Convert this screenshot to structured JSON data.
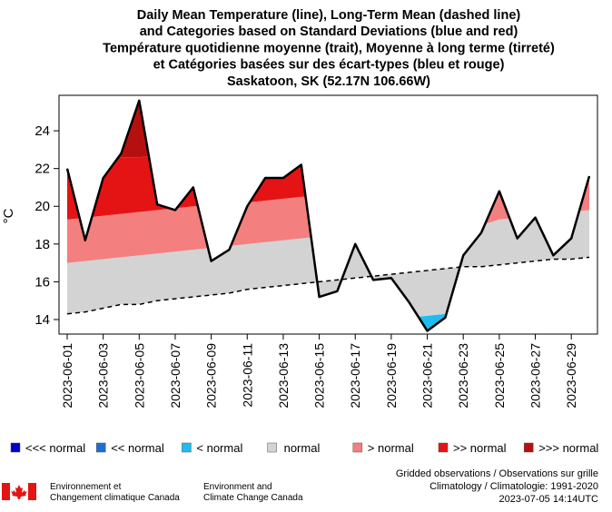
{
  "chart_data": {
    "type": "line",
    "title": [
      "Daily Mean Temperature (line), Long-Term Mean (dashed line)",
      "and Categories based on Standard Deviations (blue and red)",
      "Température quotidienne moyenne (trait), Moyenne à long terme (tirreté)",
      "et Catégories basées sur des écart-types (bleu et rouge)",
      "Saskatoon, SK (52.17N 106.66W)"
    ],
    "y_label": "°C",
    "x": [
      "2023-06-01",
      null,
      "2023-06-03",
      null,
      "2023-06-05",
      null,
      "2023-06-07",
      null,
      "2023-06-09",
      null,
      "2023-06-11",
      null,
      "2023-06-13",
      null,
      "2023-06-15",
      null,
      "2023-06-17",
      null,
      "2023-06-19",
      null,
      "2023-06-21",
      null,
      "2023-06-23",
      null,
      "2023-06-25",
      null,
      "2023-06-27",
      null,
      "2023-06-29",
      null
    ],
    "temperature": {
      "color": "#000000",
      "values": [
        22.0,
        18.2,
        21.5,
        22.8,
        25.6,
        20.1,
        19.8,
        21.0,
        17.1,
        17.7,
        20.0,
        21.5,
        21.5,
        22.2,
        15.2,
        15.5,
        18.0,
        16.1,
        16.2,
        14.9,
        13.4,
        14.1,
        17.4,
        18.6,
        20.8,
        18.3,
        19.4,
        17.4,
        18.3,
        21.6
      ]
    },
    "mean": {
      "color": "#000000",
      "values": [
        14.3,
        14.4,
        14.6,
        14.8,
        14.8,
        15.0,
        15.1,
        15.2,
        15.3,
        15.4,
        15.6,
        15.7,
        15.8,
        15.9,
        16.0,
        16.1,
        16.2,
        16.3,
        16.4,
        16.5,
        16.6,
        16.7,
        16.8,
        16.8,
        16.9,
        17.0,
        17.1,
        17.2,
        17.2,
        17.3
      ]
    },
    "sd_bounds": [
      [
        11.9,
        12.0,
        12.2,
        12.4,
        12.4,
        12.6,
        12.7,
        12.8,
        12.9,
        13.0,
        13.2,
        13.3,
        13.4,
        13.5,
        13.6,
        13.7,
        13.8,
        13.9,
        14.0,
        14.1,
        14.2,
        14.3,
        14.4,
        14.4,
        14.5,
        14.6,
        14.7,
        14.8,
        14.8,
        14.9
      ],
      [
        17.0,
        17.1,
        17.2,
        17.3,
        17.4,
        17.5,
        17.6,
        17.7,
        17.8,
        17.9,
        18.0,
        18.1,
        18.2,
        18.3,
        18.4,
        18.4,
        18.5,
        18.6,
        18.6,
        18.7,
        18.8,
        18.8,
        18.9,
        19.0,
        19.3,
        19.4,
        19.5,
        19.6,
        19.7,
        19.8
      ],
      [
        19.3,
        19.4,
        19.5,
        19.6,
        19.7,
        19.8,
        19.9,
        20.0,
        20.1,
        20.1,
        20.2,
        20.3,
        20.4,
        20.5,
        20.6,
        20.7,
        20.8,
        20.9,
        21.0,
        21.1,
        21.2,
        21.3,
        21.4,
        21.5,
        21.6,
        21.7,
        21.8,
        21.9,
        22.0,
        22.1
      ],
      [
        22.3,
        22.4,
        22.5,
        22.6,
        22.6,
        22.7,
        22.8,
        22.9,
        23.0,
        23.0,
        23.1,
        23.2,
        23.3,
        23.4,
        23.5,
        23.6,
        23.7,
        23.8,
        23.9,
        24.0,
        24.1,
        24.2,
        24.3,
        24.4,
        24.5,
        24.6,
        24.7,
        24.8,
        24.9,
        25.0
      ]
    ],
    "band_colors": [
      "#1fbcf0",
      "#d3d3d3",
      "#f47f7f",
      "#e41414",
      "#b51010"
    ],
    "ylim": [
      13.23,
      25.88
    ],
    "yticks": [
      14,
      16,
      18,
      20,
      22,
      24
    ],
    "legend": [
      {
        "label": "<<< normal",
        "color": "#0000cc"
      },
      {
        "label": "<< normal",
        "color": "#1f6fd0"
      },
      {
        "label": "< normal",
        "color": "#1fbcf0"
      },
      {
        "label": "normal",
        "color": "#d3d3d3"
      },
      {
        "label": "> normal",
        "color": "#f47f7f"
      },
      {
        "label": ">> normal",
        "color": "#e41414"
      },
      {
        "label": ">>> normal",
        "color": "#b51010"
      }
    ]
  },
  "footer": {
    "eccc_fr": [
      "Environnement et",
      "Changement climatique Canada"
    ],
    "eccc_en": [
      "Environment and",
      "Climate Change Canada"
    ],
    "notes": [
      "Gridded observations / Observations sur grille",
      "Climatology / Climatologie: 1991-2020",
      "2023-07-05 14:14UTC"
    ]
  }
}
